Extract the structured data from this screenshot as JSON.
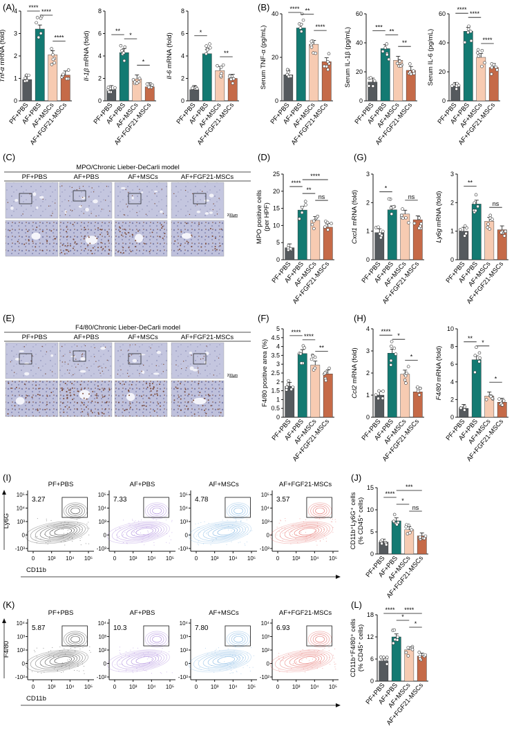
{
  "groups": [
    "PF+PBS",
    "AF+PBS",
    "AF+MSCs",
    "AF+FGF21-MSCs"
  ],
  "colors": {
    "PF+PBS": "#555a5e",
    "AF+PBS": "#137a72",
    "AF+MSCs": "#f7cbb2",
    "AF+FGF21-MSCs": "#c56a48",
    "histology_bg": "#c3c5de",
    "histology_cells": "#7b4a38",
    "flow_pf": "#222222",
    "flow_af": "#9b72d6",
    "flow_msc": "#6aa9de",
    "flow_fgf": "#e0544f"
  },
  "panel_labels": {
    "A": "(A)",
    "B": "(B)",
    "C": "(C)",
    "D": "(D)",
    "E": "(E)",
    "F": "(F)",
    "G": "(G)",
    "H": "(H)",
    "I": "(I)",
    "J": "(J)",
    "K": "(K)",
    "L": "(L)"
  },
  "histology": {
    "mpo_title": "MPO/Chronic Lieber-DeCarli model",
    "f480_title": "F4/80/Chronic Lieber-DeCarli model",
    "scale_label": "200µm"
  },
  "flow": {
    "I": {
      "ylabel": "Ly6G",
      "xlabel": "CD11b",
      "y_ticks": [
        "10⁵",
        "10⁴",
        "10³",
        "0",
        "-10³"
      ],
      "x_ticks": [
        "0",
        "10³",
        "10⁴",
        "10⁵"
      ],
      "percentages": [
        "3.27",
        "7.33",
        "4.78",
        "3.57"
      ]
    },
    "K": {
      "ylabel": "F4/80",
      "xlabel": "CD11b",
      "y_ticks": [
        "10⁴",
        "10³",
        "10²",
        "0",
        "-10²"
      ],
      "x_ticks": [
        "0",
        "10³",
        "10⁴",
        "10⁵"
      ],
      "percentages": [
        "5.87",
        "10.3",
        "7.80",
        "6.93"
      ]
    }
  },
  "chart_data": [
    {
      "id": "A1",
      "type": "bar",
      "ylabel_italic": "Tnf-α",
      "ylabel_rest": " mRNA (fold)",
      "ylim": [
        0,
        4
      ],
      "yticks": [
        0,
        1,
        2,
        3,
        4
      ],
      "categories": [
        "PF+PBS",
        "AF+PBS",
        "AF+MSCs",
        "AF+FGF21-MSCs"
      ],
      "values": [
        0.95,
        3.2,
        2.05,
        1.15
      ],
      "sig": [
        {
          "from": 0,
          "to": 1,
          "label": "****"
        },
        {
          "from": 1,
          "to": 2,
          "label": "****"
        },
        {
          "from": 2,
          "to": 3,
          "label": "****"
        }
      ]
    },
    {
      "id": "A2",
      "type": "bar",
      "ylabel_italic": "Il-1β",
      "ylabel_rest": " mRNA (fold)",
      "ylim": [
        0,
        8
      ],
      "yticks": [
        0,
        2,
        4,
        6,
        8
      ],
      "categories": [
        "PF+PBS",
        "AF+PBS",
        "AF+MSCs",
        "AF+FGF21-MSCs"
      ],
      "values": [
        1.0,
        4.3,
        1.95,
        1.25
      ],
      "sig": [
        {
          "from": 0,
          "to": 1,
          "label": "**"
        },
        {
          "from": 1,
          "to": 2,
          "label": "*"
        },
        {
          "from": 2,
          "to": 3,
          "label": "*"
        }
      ]
    },
    {
      "id": "A3",
      "type": "bar",
      "ylabel_italic": "Il-6",
      "ylabel_rest": " mRNA (fold)",
      "ylim": [
        0,
        8
      ],
      "yticks": [
        0,
        2,
        4,
        6,
        8
      ],
      "categories": [
        "PF+PBS",
        "AF+PBS",
        "AF+MSCs",
        "AF+FGF21-MSCs"
      ],
      "values": [
        1.0,
        4.2,
        2.7,
        2.0
      ],
      "sig": [
        {
          "from": 0,
          "to": 1,
          "label": "*"
        },
        {
          "from": 2,
          "to": 3,
          "label": "**"
        }
      ]
    },
    {
      "id": "B1",
      "type": "bar",
      "ylabel_italic": "",
      "ylabel_rest": "Serum TNF-α (pg/mL)",
      "ylim": [
        0,
        40
      ],
      "yticks": [
        0,
        20,
        40
      ],
      "categories": [
        "PF+PBS",
        "AF+PBS",
        "AF+MSCs",
        "AF+FGF21-MSCs"
      ],
      "values": [
        12,
        33.5,
        26,
        18
      ],
      "sig": [
        {
          "from": 0,
          "to": 1,
          "label": "****"
        },
        {
          "from": 1,
          "to": 2,
          "label": "**"
        },
        {
          "from": 2,
          "to": 3,
          "label": "****"
        }
      ]
    },
    {
      "id": "B2",
      "type": "bar",
      "ylabel_italic": "",
      "ylabel_rest": "Serum IL-1β (pg/mL)",
      "ylim": [
        0,
        60
      ],
      "yticks": [
        0,
        20,
        40,
        60
      ],
      "categories": [
        "PF+PBS",
        "AF+PBS",
        "AF+MSCs",
        "AF+FGF21-MSCs"
      ],
      "values": [
        13,
        36,
        28,
        21
      ],
      "sig": [
        {
          "from": 0,
          "to": 1,
          "label": "***"
        },
        {
          "from": 1,
          "to": 2,
          "label": "**"
        },
        {
          "from": 2,
          "to": 3,
          "label": "**"
        }
      ]
    },
    {
      "id": "B3",
      "type": "bar",
      "ylabel_italic": "",
      "ylabel_rest": "Serum IL-6 (pg/mL)",
      "ylim": [
        0,
        60
      ],
      "yticks": [
        0,
        20,
        40,
        60
      ],
      "categories": [
        "PF+PBS",
        "AF+PBS",
        "AF+MSCs",
        "AF+FGF21-MSCs"
      ],
      "values": [
        10,
        48,
        30,
        23
      ],
      "sig": [
        {
          "from": 0,
          "to": 1,
          "label": "****"
        },
        {
          "from": 1,
          "to": 2,
          "label": "****"
        },
        {
          "from": 2,
          "to": 3,
          "label": "****"
        }
      ]
    },
    {
      "id": "D",
      "type": "bar",
      "ylabel_italic": "",
      "ylabel_rest": "MPO positive cells",
      "ylabel2": "(per HPF)",
      "ylim": [
        0,
        25
      ],
      "yticks": [
        0,
        5,
        10,
        15,
        20,
        25
      ],
      "categories": [
        "PF+PBS",
        "AF+PBS",
        "AF+MSCs",
        "AF+FGF21-MSCs"
      ],
      "values": [
        3.5,
        14.5,
        11.5,
        9.5
      ],
      "sig": [
        {
          "from": 0,
          "to": 1,
          "label": "****"
        },
        {
          "from": 1,
          "to": 2,
          "label": "**"
        },
        {
          "from": 1,
          "to": 3,
          "label": "****"
        },
        {
          "from": 2,
          "to": 3,
          "label": "ns"
        }
      ]
    },
    {
      "id": "G1",
      "type": "bar",
      "ylabel_italic": "Cxcl1",
      "ylabel_rest": " mRNA (fold)",
      "ylim": [
        0,
        3
      ],
      "yticks": [
        0,
        1,
        2,
        3
      ],
      "categories": [
        "PF+PBS",
        "AF+PBS",
        "AF+MSCs",
        "AF+FGF21-MSCs"
      ],
      "values": [
        0.95,
        1.75,
        1.6,
        1.4
      ],
      "sig": [
        {
          "from": 0,
          "to": 1,
          "label": "*"
        },
        {
          "from": 2,
          "to": 3,
          "label": "ns"
        }
      ]
    },
    {
      "id": "G2",
      "type": "bar",
      "ylabel_italic": "Ly6g",
      "ylabel_rest": " mRNA (fold)",
      "ylim": [
        0,
        3
      ],
      "yticks": [
        0,
        1,
        2,
        3
      ],
      "categories": [
        "PF+PBS",
        "AF+PBS",
        "AF+MSCs",
        "AF+FGF21-MSCs"
      ],
      "values": [
        1.0,
        1.95,
        1.35,
        1.05
      ],
      "sig": [
        {
          "from": 0,
          "to": 1,
          "label": "**"
        },
        {
          "from": 2,
          "to": 3,
          "label": "ns"
        }
      ]
    },
    {
      "id": "F",
      "type": "bar",
      "ylabel_italic": "",
      "ylabel_rest": "F4/80 positive area (%)",
      "ylim": [
        0,
        5
      ],
      "yticks": [
        0,
        0.5,
        1,
        1.5,
        2,
        2.5,
        3,
        3.5,
        4,
        4.5,
        5
      ],
      "categories": [
        "PF+PBS",
        "AF+PBS",
        "AF+MSCs",
        "AF+FGF21-MSCs"
      ],
      "values": [
        1.75,
        3.6,
        2.95,
        2.45
      ],
      "sig": [
        {
          "from": 0,
          "to": 1,
          "label": "****"
        },
        {
          "from": 1,
          "to": 2,
          "label": "****"
        },
        {
          "from": 2,
          "to": 3,
          "label": "**"
        }
      ]
    },
    {
      "id": "H1",
      "type": "bar",
      "ylabel_italic": "Ccl2",
      "ylabel_rest": " mRNA (fold)",
      "ylim": [
        0,
        4
      ],
      "yticks": [
        0,
        1,
        2,
        3,
        4
      ],
      "categories": [
        "PF+PBS",
        "AF+PBS",
        "AF+MSCs",
        "AF+FGF21-MSCs"
      ],
      "values": [
        1.0,
        2.9,
        1.95,
        1.15
      ],
      "sig": [
        {
          "from": 0,
          "to": 1,
          "label": "****"
        },
        {
          "from": 1,
          "to": 2,
          "label": "*"
        },
        {
          "from": 2,
          "to": 3,
          "label": "*"
        }
      ]
    },
    {
      "id": "H2",
      "type": "bar",
      "ylabel_italic": "F4/80",
      "ylabel_rest": " mRNA (fold)",
      "ylim": [
        0,
        10
      ],
      "yticks": [
        0,
        2,
        4,
        6,
        8,
        10
      ],
      "categories": [
        "PF+PBS",
        "AF+PBS",
        "AF+MSCs",
        "AF+FGF21-MSCs"
      ],
      "values": [
        1.0,
        6.5,
        2.4,
        1.7
      ],
      "sig": [
        {
          "from": 0,
          "to": 1,
          "label": "**"
        },
        {
          "from": 1,
          "to": 2,
          "label": "*"
        },
        {
          "from": 2,
          "to": 3,
          "label": "*"
        }
      ]
    },
    {
      "id": "J",
      "type": "bar",
      "ylabel_italic": "",
      "ylabel_rest": "CD11b⁺Ly6G⁺ cells",
      "ylabel2": "(% CD45⁺ cells)",
      "ylim": [
        0,
        15
      ],
      "yticks": [
        0,
        5,
        10,
        15
      ],
      "categories": [
        "PF+PBS",
        "AF+PBS",
        "AF+MSCs",
        "AF+FGF21-MSCs"
      ],
      "values": [
        2.7,
        7.5,
        5.5,
        4.1
      ],
      "sig": [
        {
          "from": 0,
          "to": 1,
          "label": "****"
        },
        {
          "from": 1,
          "to": 2,
          "label": "*"
        },
        {
          "from": 1,
          "to": 3,
          "label": "***"
        },
        {
          "from": 2,
          "to": 3,
          "label": "ns"
        }
      ]
    },
    {
      "id": "L",
      "type": "bar",
      "ylabel_italic": "",
      "ylabel_rest": "CD11b⁺F4/80⁺ cells",
      "ylabel2": "(% CD45⁺ cells)",
      "ylim": [
        0,
        18
      ],
      "yticks": [
        0,
        6,
        12,
        18
      ],
      "categories": [
        "PF+PBS",
        "AF+PBS",
        "AF+MSCs",
        "AF+FGF21-MSCs"
      ],
      "values": [
        5.5,
        12.0,
        8.5,
        6.8
      ],
      "sig": [
        {
          "from": 0,
          "to": 1,
          "label": "****"
        },
        {
          "from": 1,
          "to": 2,
          "label": "*"
        },
        {
          "from": 1,
          "to": 3,
          "label": "****"
        },
        {
          "from": 2,
          "to": 3,
          "label": "*"
        }
      ]
    }
  ]
}
